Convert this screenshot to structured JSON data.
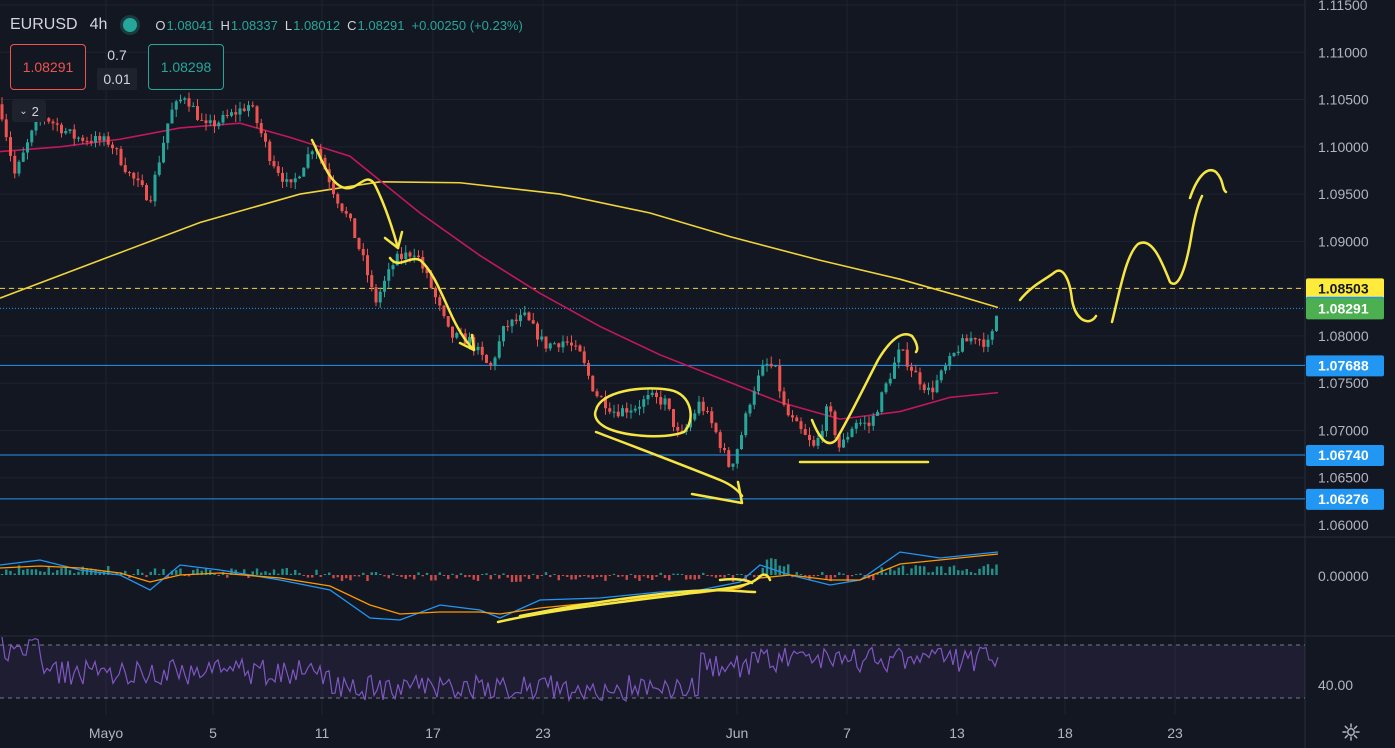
{
  "legend": {
    "symbol": "EURUSD",
    "timeframe": "4h",
    "open_label": "O",
    "open": "1.08041",
    "high_label": "H",
    "high": "1.08337",
    "low_label": "L",
    "low": "1.08012",
    "close_label": "C",
    "close": "1.08291",
    "change": "+0.00250 (+0.23%)"
  },
  "trade": {
    "sell_price": "1.08291",
    "lot": "0.7",
    "spread": "0.01",
    "buy_price": "1.08298"
  },
  "collapse": {
    "count": "2"
  },
  "price_axis": {
    "ticks": [
      "1.11500",
      "1.11000",
      "1.10500",
      "1.10000",
      "1.09500",
      "1.09000",
      "1.08500",
      "1.08000",
      "1.07500",
      "1.07000",
      "1.06500",
      "1.06000"
    ],
    "macd_tick": "0.00000",
    "rsi_tick": "40.00",
    "badges": [
      {
        "text": "1.08503",
        "value": 1.08503,
        "bg": "#ffeb3b",
        "fg": "#131722"
      },
      {
        "text": "1.08308",
        "value": 1.08308,
        "bg": "#2196f3",
        "fg": "#ffffff"
      },
      {
        "text": "1.08291",
        "value": 1.08291,
        "bg": "#4caf50",
        "fg": "#ffffff"
      },
      {
        "text": "1.07688",
        "value": 1.07688,
        "bg": "#2196f3",
        "fg": "#ffffff"
      },
      {
        "text": "1.06740",
        "value": 1.0674,
        "bg": "#2196f3",
        "fg": "#ffffff"
      },
      {
        "text": "1.06276",
        "value": 1.06276,
        "bg": "#2196f3",
        "fg": "#ffffff"
      }
    ]
  },
  "time_axis": [
    "Mayo",
    "5",
    "11",
    "17",
    "23",
    "Jun",
    "7",
    "13",
    "18",
    "23"
  ],
  "colors": {
    "up": "#26a69a",
    "down": "#ef5350",
    "ma_fast": "#c2185b",
    "ma_slow": "#f0d43a",
    "hline": "#2196f3",
    "drawing": "#f5e642",
    "rsi": "#7e57c2",
    "macd_line": "#2196f3",
    "signal_line": "#ff9800",
    "background": "#131722",
    "grid": "#1f2330",
    "axis_text": "#b2b5be"
  },
  "icons": {
    "live_dot": "green-circle",
    "collapse": "chevron-down",
    "settings": "gear"
  }
}
